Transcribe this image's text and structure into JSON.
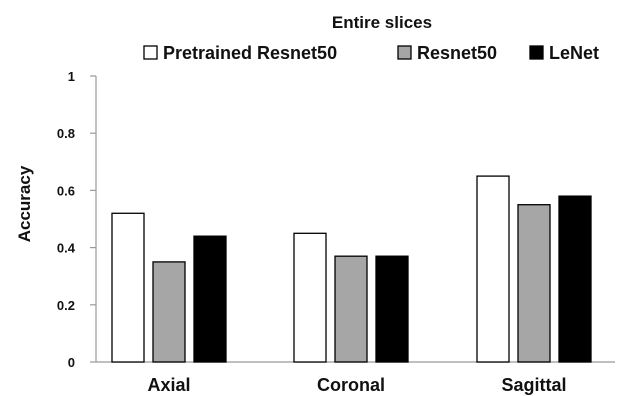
{
  "chart_data": {
    "type": "bar",
    "title": "Entire slices",
    "xlabel": "",
    "ylabel": "Accuracy",
    "categories": [
      "Axial",
      "Coronal",
      "Sagittal"
    ],
    "series": [
      {
        "name": "Pretrained Resnet50",
        "values": [
          0.52,
          0.45,
          0.65
        ],
        "color": "#ffffff"
      },
      {
        "name": "Resnet50",
        "values": [
          0.35,
          0.37,
          0.55
        ],
        "color": "#a6a6a6"
      },
      {
        "name": "LeNet",
        "values": [
          0.44,
          0.37,
          0.58
        ],
        "color": "#000000"
      }
    ],
    "ylim": [
      0,
      1
    ],
    "yticks": [
      0,
      0.2,
      0.4,
      0.6,
      0.8,
      1
    ],
    "ytick_labels": [
      "0",
      "0.2",
      "0.4",
      "0.6",
      "0.8",
      "1"
    ],
    "grid": false,
    "legend_position": "top"
  }
}
